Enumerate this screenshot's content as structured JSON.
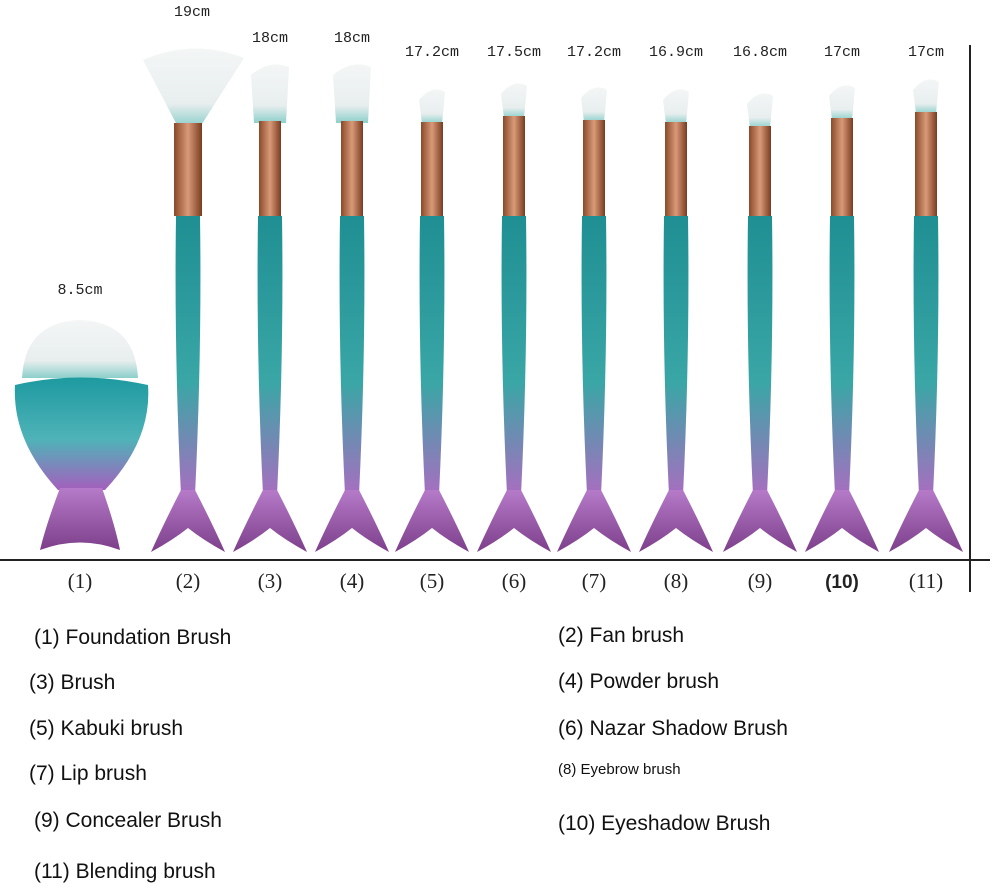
{
  "brushes": [
    {
      "length": "8.5cm",
      "number": "(1)"
    },
    {
      "length": "19cm",
      "number": "(2)"
    },
    {
      "length": "18cm",
      "number": "(3)"
    },
    {
      "length": "18cm",
      "number": "(4)"
    },
    {
      "length": "17.2cm",
      "number": "(5)"
    },
    {
      "length": "17.5cm",
      "number": "(6)"
    },
    {
      "length": "17.2cm",
      "number": "(7)"
    },
    {
      "length": "16.9cm",
      "number": "(8)"
    },
    {
      "length": "16.8cm",
      "number": "(9)"
    },
    {
      "length": "17cm",
      "number": "(10)"
    },
    {
      "length": "17cm",
      "number": "(11)"
    }
  ],
  "legend": [
    "(1) Foundation Brush",
    "(2) Fan brush",
    "(3) Brush",
    "(4) Powder brush",
    "(5) Kabuki brush",
    "(6) Nazar Shadow Brush",
    "(7) Lip brush",
    "(8) Eyebrow brush",
    "(9) Concealer Brush",
    "(10) Eyeshadow Brush",
    "(11) Blending brush"
  ]
}
